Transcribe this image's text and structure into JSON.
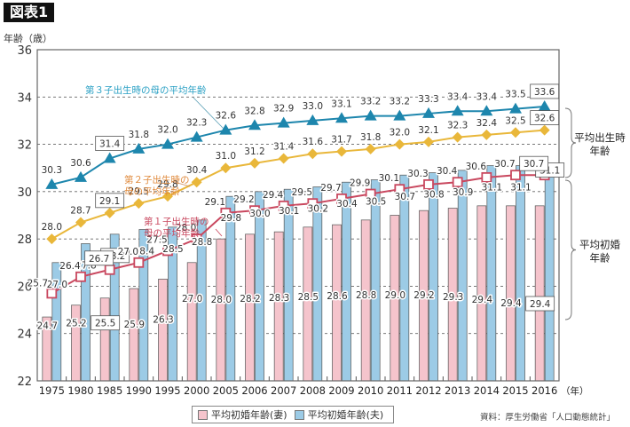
{
  "header": {
    "badge": "図表1",
    "y_axis_title": "年齢（歳）"
  },
  "source": "資料：厚生労働省「人口動態統計」",
  "colors": {
    "wife_bar": "#f5c4cc",
    "husband_bar": "#9ccbe6",
    "first_child": "#c9485f",
    "second_child": "#e9b73a",
    "third_child": "#1d86ad",
    "second_label": "#e08a3c",
    "third_label": "#2aa0c4"
  },
  "chart_data": {
    "type": "bar",
    "title": "図表1",
    "xlabel": "（年）",
    "ylabel": "年齢（歳）",
    "ylim": [
      22,
      36
    ],
    "yticks": [
      22,
      24,
      26,
      28,
      30,
      32,
      34,
      36
    ],
    "grid": true,
    "legend_position": "bottom-center",
    "categories": [
      "1975",
      "1980",
      "1985",
      "1990",
      "1995",
      "2000",
      "2005",
      "2006",
      "2007",
      "2008",
      "2009",
      "2010",
      "2011",
      "2012",
      "2013",
      "2014",
      "2015",
      "2016"
    ],
    "series": [
      {
        "name": "平均初婚年齢（妻）",
        "kind": "bar",
        "values": [
          24.7,
          25.2,
          25.5,
          25.9,
          26.3,
          27.0,
          28.0,
          28.2,
          28.3,
          28.5,
          28.6,
          28.8,
          29.0,
          29.2,
          29.3,
          29.4,
          29.4,
          29.4
        ]
      },
      {
        "name": "平均初婚年齢（夫）",
        "kind": "bar",
        "values": [
          27.0,
          27.8,
          28.2,
          28.4,
          28.5,
          28.8,
          29.8,
          30.0,
          30.1,
          30.2,
          30.4,
          30.5,
          30.7,
          30.8,
          30.9,
          31.1,
          31.1,
          31.1
        ]
      },
      {
        "name": "第１子出生時の母の平均年齢",
        "kind": "line",
        "marker": "square",
        "values": [
          25.7,
          26.4,
          26.7,
          27.0,
          27.5,
          28.0,
          29.1,
          29.2,
          29.4,
          29.5,
          29.7,
          29.9,
          30.1,
          30.3,
          30.4,
          30.6,
          30.7,
          30.7
        ]
      },
      {
        "name": "第２子出生時の母の平均年齢",
        "kind": "line",
        "marker": "diamond",
        "values": [
          28.0,
          28.7,
          29.1,
          29.5,
          29.8,
          30.4,
          31.0,
          31.2,
          31.4,
          31.6,
          31.7,
          31.8,
          32.0,
          32.1,
          32.3,
          32.4,
          32.5,
          32.6
        ]
      },
      {
        "name": "第３子出生時の母の平均年齢",
        "kind": "line",
        "marker": "triangle",
        "values": [
          30.3,
          30.6,
          31.4,
          31.8,
          32.0,
          32.3,
          32.6,
          32.8,
          32.9,
          33.0,
          33.1,
          33.2,
          33.2,
          33.3,
          33.4,
          33.4,
          33.5,
          33.6
        ]
      }
    ],
    "series_annotations": {
      "first": "第１子出生時の\n母の平均年齢",
      "second": "第２子出生時の\n母の平均年齢",
      "third": "第３子出生時の母の平均年齢"
    },
    "boxed_labels": [
      "1985",
      "2016"
    ],
    "brackets": [
      {
        "label": "平均出生時\n年齢"
      },
      {
        "label": "平均初婚\n年齢"
      }
    ]
  },
  "legend": [
    {
      "label": "平均初婚年齢(妻)"
    },
    {
      "label": "平均初婚年齢(夫)"
    }
  ]
}
